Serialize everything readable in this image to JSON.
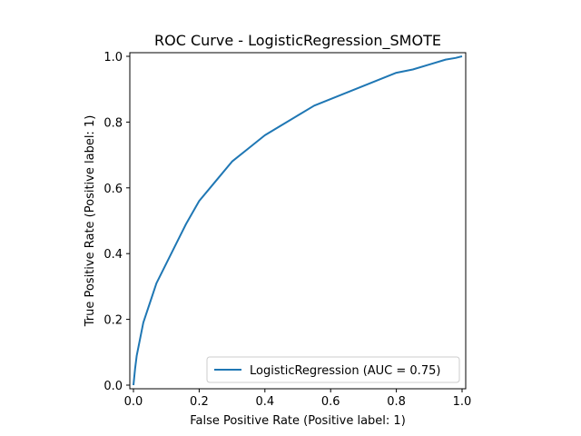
{
  "chart_data": {
    "type": "line",
    "title": "ROC Curve - LogisticRegression_SMOTE",
    "xlabel": "False Positive Rate (Positive label: 1)",
    "ylabel": "True Positive Rate (Positive label: 1)",
    "xlim": [
      0,
      1
    ],
    "ylim": [
      0,
      1
    ],
    "x_ticks": [
      "0.0",
      "0.2",
      "0.4",
      "0.6",
      "0.8",
      "1.0"
    ],
    "y_ticks": [
      "0.0",
      "0.2",
      "0.4",
      "0.6",
      "0.8",
      "1.0"
    ],
    "grid": false,
    "legend_position": "bottom-right",
    "series": [
      {
        "name": "LogisticRegression (AUC = 0.75)",
        "color": "#1f77b4",
        "x": [
          0.0,
          0.002,
          0.005,
          0.01,
          0.02,
          0.03,
          0.05,
          0.07,
          0.1,
          0.13,
          0.16,
          0.2,
          0.25,
          0.3,
          0.35,
          0.4,
          0.45,
          0.5,
          0.55,
          0.6,
          0.65,
          0.7,
          0.75,
          0.8,
          0.85,
          0.9,
          0.95,
          0.98,
          1.0
        ],
        "y": [
          0.0,
          0.02,
          0.05,
          0.09,
          0.14,
          0.19,
          0.25,
          0.31,
          0.37,
          0.43,
          0.49,
          0.56,
          0.62,
          0.68,
          0.72,
          0.76,
          0.79,
          0.82,
          0.85,
          0.87,
          0.89,
          0.91,
          0.93,
          0.95,
          0.96,
          0.975,
          0.99,
          0.995,
          1.0
        ]
      }
    ]
  }
}
